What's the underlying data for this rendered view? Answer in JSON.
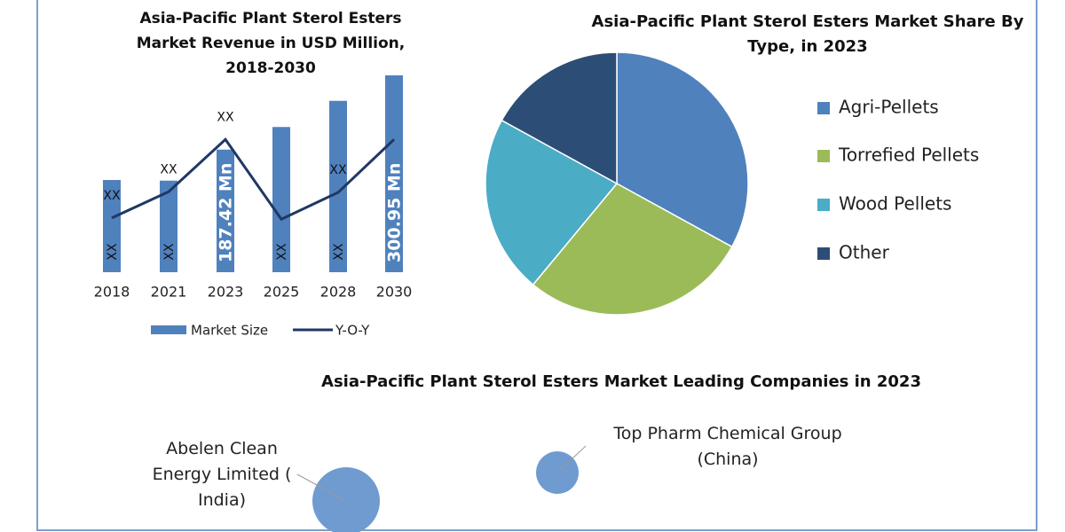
{
  "chart_data": [
    {
      "type": "bar",
      "title": "Asia-Pacific Plant Sterol Esters Market Revenue in USD Million, 2018-2030",
      "categories": [
        "2018",
        "2021",
        "2023",
        "2025",
        "2028",
        "2030"
      ],
      "series": [
        {
          "name": "Market Size",
          "type": "bar",
          "color": "#4f81bd",
          "values": [
            141,
            140,
            187.42,
            222,
            262,
            300.95
          ],
          "value_labels": [
            "XX",
            "XX",
            "187.42 Mn",
            "XX",
            "XX",
            "300.95 Mn"
          ]
        },
        {
          "name": "Y-O-Y",
          "type": "line",
          "color": "#1f3864",
          "values": [
            83,
            123,
            203,
            81,
            122,
            203
          ],
          "value_labels": [
            "XX",
            "XX",
            "XX",
            null,
            "XX",
            null
          ]
        }
      ]
    },
    {
      "type": "pie",
      "title": "Asia-Pacific Plant Sterol Esters Market Share By Type, in 2023",
      "categories": [
        "Agri-Pellets",
        "Torrefied Pellets",
        "Wood Pellets",
        "Other"
      ],
      "values": [
        33,
        28,
        22,
        17
      ],
      "colors": [
        "#4f81bd",
        "#9bbb59",
        "#4bacc6",
        "#2c4d75"
      ]
    },
    {
      "type": "bubble",
      "title": "Asia-Pacific Plant Sterol Esters Market Leading Companies in 2023",
      "labels": [
        "Abelen Clean Energy Limited ( India)",
        "Top Pharm Chemical Group (China)"
      ],
      "sizes": [
        38,
        24
      ],
      "color": "#6f9bd1"
    }
  ]
}
